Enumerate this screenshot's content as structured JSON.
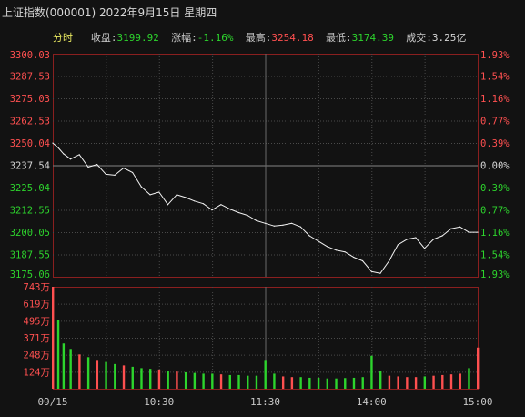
{
  "header": {
    "title": "上证指数(000001) 2022年9月15日 星期四",
    "tab": "分时",
    "close_label": "收盘:",
    "close_value": "3199.92",
    "change_label": "涨幅:",
    "change_value": "-1.16%",
    "high_label": "最高:",
    "high_value": "3254.18",
    "low_label": "最低:",
    "low_value": "3174.39",
    "volume_label": "成交:",
    "volume_value": "3.25亿"
  },
  "colors": {
    "up": "#ff5050",
    "down": "#2dd42d",
    "neutral": "#d6d6d6",
    "tab": "#e8e860",
    "grid": "#4a4a4a",
    "frame": "#8a1f1f",
    "line": "#f2f2f2"
  },
  "chart_data": [
    {
      "type": "line",
      "name": "price",
      "yticks": [
        "3300.03",
        "3287.53",
        "3275.03",
        "3262.53",
        "3250.04",
        "3237.54",
        "3225.04",
        "3212.55",
        "3200.05",
        "3187.55",
        "3175.06"
      ],
      "pct_ticks": [
        "1.93%",
        "1.54%",
        "1.16%",
        "0.77%",
        "0.39%",
        "0.00%",
        "0.39%",
        "0.77%",
        "1.16%",
        "1.54%",
        "1.93%"
      ],
      "prev_close": 3237.54,
      "ylim": [
        3175.06,
        3300.03
      ],
      "x": [
        "09:30",
        "09:33",
        "09:36",
        "09:40",
        "09:45",
        "09:50",
        "09:55",
        "10:00",
        "10:05",
        "10:10",
        "10:15",
        "10:20",
        "10:25",
        "10:30",
        "10:35",
        "10:40",
        "10:45",
        "10:50",
        "10:55",
        "11:00",
        "11:05",
        "11:10",
        "11:15",
        "11:20",
        "11:25",
        "11:30",
        "13:05",
        "13:10",
        "13:15",
        "13:20",
        "13:25",
        "13:30",
        "13:35",
        "13:40",
        "13:45",
        "13:50",
        "13:55",
        "14:00",
        "14:05",
        "14:10",
        "14:15",
        "14:20",
        "14:25",
        "14:30",
        "14:35",
        "14:40",
        "14:45",
        "14:50",
        "14:55",
        "15:00"
      ],
      "values": [
        3250.0,
        3247.5,
        3244.0,
        3241.0,
        3243.5,
        3236.5,
        3238.0,
        3232.5,
        3232.0,
        3236.0,
        3233.5,
        3225.5,
        3221.0,
        3222.5,
        3215.5,
        3221.0,
        3219.5,
        3217.5,
        3216.0,
        3212.5,
        3215.5,
        3213.0,
        3211.0,
        3209.5,
        3206.5,
        3205.0,
        3203.5,
        3204.0,
        3205.0,
        3203.0,
        3198.0,
        3195.0,
        3192.0,
        3190.0,
        3189.0,
        3186.0,
        3184.0,
        3178.0,
        3177.0,
        3184.0,
        3193.0,
        3196.0,
        3197.0,
        3191.0,
        3196.0,
        3198.0,
        3202.0,
        3203.0,
        3200.0,
        3200.0
      ]
    },
    {
      "type": "bar",
      "name": "volume",
      "yticks": [
        "743万",
        "619万",
        "495万",
        "371万",
        "248万",
        "124万"
      ],
      "ylim": [
        0,
        743
      ],
      "xticks": [
        "09/15",
        "10:30",
        "11:30",
        "14:00",
        "15:00"
      ],
      "x": [
        "09:30",
        "09:33",
        "09:36",
        "09:40",
        "09:45",
        "09:50",
        "09:55",
        "10:00",
        "10:05",
        "10:10",
        "10:15",
        "10:20",
        "10:25",
        "10:30",
        "10:35",
        "10:40",
        "10:45",
        "10:50",
        "10:55",
        "11:00",
        "11:05",
        "11:10",
        "11:15",
        "11:20",
        "11:25",
        "11:30",
        "13:05",
        "13:10",
        "13:15",
        "13:20",
        "13:25",
        "13:30",
        "13:35",
        "13:40",
        "13:45",
        "13:50",
        "13:55",
        "14:00",
        "14:05",
        "14:10",
        "14:15",
        "14:20",
        "14:25",
        "14:30",
        "14:35",
        "14:40",
        "14:45",
        "14:50",
        "14:55",
        "15:00"
      ],
      "values": [
        743,
        500,
        330,
        290,
        250,
        230,
        210,
        195,
        180,
        170,
        160,
        150,
        145,
        140,
        130,
        125,
        120,
        115,
        110,
        110,
        105,
        100,
        100,
        95,
        95,
        210,
        110,
        90,
        85,
        85,
        80,
        80,
        75,
        75,
        78,
        80,
        85,
        240,
        130,
        95,
        90,
        85,
        85,
        90,
        95,
        100,
        105,
        110,
        150,
        300
      ]
    }
  ]
}
